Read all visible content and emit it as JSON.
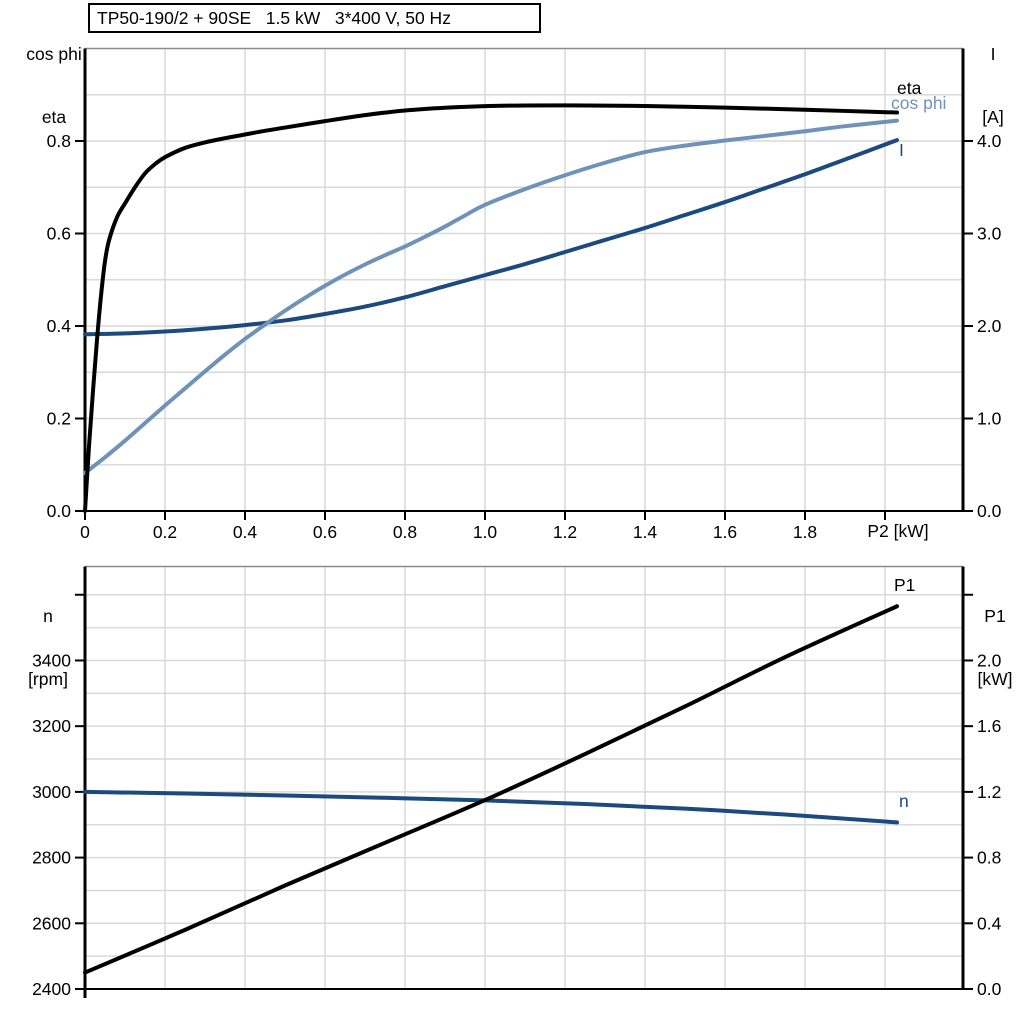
{
  "colors": {
    "grid": "#d9d9d9",
    "plot_border": "#8c8c8c",
    "axis": "#000000",
    "black_curve": "#000000",
    "dark_blue_curve": "#1a4a7e",
    "light_blue_curve": "#6f92b9"
  },
  "chart_data": [
    {
      "type": "line",
      "title": "TP50-190/2 + 90SE   1.5 kW   3*400 V, 50 Hz",
      "legend_position": "curve-end-labels",
      "grid": true,
      "x_axis": {
        "label": "P2 [kW]",
        "min": 0,
        "max": 2.195,
        "grid_step": 0.2,
        "ticks": [
          0,
          0.2,
          0.4,
          0.6,
          0.8,
          1.0,
          1.2,
          1.4,
          1.6,
          1.8,
          2.0
        ],
        "tick_labels": [
          "0",
          "0.2",
          "0.4",
          "0.6",
          "0.8",
          "1.0",
          "1.2",
          "1.4",
          "1.6",
          "1.8",
          ""
        ]
      },
      "y_left": {
        "label_lines": [
          "cos phi",
          "eta"
        ],
        "min": 0,
        "max": 1.0,
        "grid_step": 0.1,
        "ticks": [
          0.0,
          0.2,
          0.4,
          0.6,
          0.8
        ],
        "tick_labels": [
          "0.0",
          "0.2",
          "0.4",
          "0.6",
          "0.8"
        ]
      },
      "y_right": {
        "label_lines": [
          "I",
          "[A]"
        ],
        "min": 0,
        "max": 5.0,
        "ticks": [
          0.0,
          1.0,
          2.0,
          3.0,
          4.0
        ],
        "tick_labels": [
          "0.0",
          "1.0",
          "2.0",
          "3.0",
          "4.0"
        ]
      },
      "series": [
        {
          "name": "eta",
          "axis": "left",
          "color": "#000000",
          "points": [
            [
              0,
              0
            ],
            [
              0.01,
              0.14
            ],
            [
              0.02,
              0.26
            ],
            [
              0.03,
              0.37
            ],
            [
              0.04,
              0.465
            ],
            [
              0.05,
              0.54
            ],
            [
              0.06,
              0.585
            ],
            [
              0.08,
              0.635
            ],
            [
              0.1,
              0.665
            ],
            [
              0.125,
              0.7
            ],
            [
              0.15,
              0.73
            ],
            [
              0.175,
              0.75
            ],
            [
              0.2,
              0.765
            ],
            [
              0.25,
              0.785
            ],
            [
              0.3,
              0.797
            ],
            [
              0.35,
              0.806
            ],
            [
              0.4,
              0.814
            ],
            [
              0.45,
              0.822
            ],
            [
              0.5,
              0.829
            ],
            [
              0.6,
              0.843
            ],
            [
              0.7,
              0.856
            ],
            [
              0.8,
              0.866
            ],
            [
              0.9,
              0.872
            ],
            [
              1.0,
              0.8755
            ],
            [
              1.1,
              0.8768
            ],
            [
              1.2,
              0.877
            ],
            [
              1.3,
              0.8766
            ],
            [
              1.4,
              0.8756
            ],
            [
              1.5,
              0.874
            ],
            [
              1.6,
              0.8722
            ],
            [
              1.7,
              0.87
            ],
            [
              1.8,
              0.8676
            ],
            [
              1.9,
              0.865
            ],
            [
              2.03,
              0.8615
            ]
          ]
        },
        {
          "name": "cos phi",
          "axis": "left",
          "color": "#6f92b9",
          "points": [
            [
              0,
              0.082
            ],
            [
              0.05,
              0.116
            ],
            [
              0.1,
              0.152
            ],
            [
              0.15,
              0.19
            ],
            [
              0.2,
              0.228
            ],
            [
              0.25,
              0.265
            ],
            [
              0.3,
              0.302
            ],
            [
              0.35,
              0.338
            ],
            [
              0.4,
              0.372
            ],
            [
              0.45,
              0.403
            ],
            [
              0.5,
              0.433
            ],
            [
              0.55,
              0.461
            ],
            [
              0.6,
              0.487
            ],
            [
              0.65,
              0.511
            ],
            [
              0.7,
              0.533
            ],
            [
              0.75,
              0.553
            ],
            [
              0.8,
              0.572
            ],
            [
              0.85,
              0.593
            ],
            [
              0.9,
              0.615
            ],
            [
              0.95,
              0.639
            ],
            [
              1.0,
              0.662
            ],
            [
              1.1,
              0.696
            ],
            [
              1.2,
              0.726
            ],
            [
              1.3,
              0.753
            ],
            [
              1.4,
              0.776
            ],
            [
              1.5,
              0.79
            ],
            [
              1.6,
              0.801
            ],
            [
              1.7,
              0.811
            ],
            [
              1.8,
              0.821
            ],
            [
              1.9,
              0.832
            ],
            [
              2.03,
              0.844
            ]
          ]
        },
        {
          "name": "I",
          "axis": "right",
          "color": "#1a4a7e",
          "points": [
            [
              0,
              1.91
            ],
            [
              0.1,
              1.92
            ],
            [
              0.2,
              1.94
            ],
            [
              0.3,
              1.97
            ],
            [
              0.4,
              2.01
            ],
            [
              0.5,
              2.06
            ],
            [
              0.6,
              2.13
            ],
            [
              0.7,
              2.21
            ],
            [
              0.8,
              2.31
            ],
            [
              0.9,
              2.43
            ],
            [
              1.0,
              2.55
            ],
            [
              1.1,
              2.67
            ],
            [
              1.2,
              2.8
            ],
            [
              1.3,
              2.93
            ],
            [
              1.4,
              3.06
            ],
            [
              1.5,
              3.2
            ],
            [
              1.6,
              3.34
            ],
            [
              1.7,
              3.49
            ],
            [
              1.8,
              3.64
            ],
            [
              1.9,
              3.8
            ],
            [
              2.03,
              4.01
            ]
          ]
        }
      ]
    },
    {
      "type": "line",
      "title": "",
      "grid": true,
      "x_axis": {
        "label": "",
        "min": 0,
        "max": 2.195,
        "grid_step": 0.2,
        "ticks": [
          0
        ],
        "tick_labels": [
          ""
        ]
      },
      "y_left": {
        "label_lines": [
          "n",
          "[rpm]"
        ],
        "min": 2400,
        "max": 3686,
        "grid_step": 100,
        "ticks": [
          2400,
          2600,
          2800,
          3000,
          3200,
          3400,
          3600
        ],
        "tick_labels": [
          "2400",
          "2600",
          "2800",
          "3000",
          "3200",
          "3400",
          ""
        ]
      },
      "y_right": {
        "label_lines": [
          "P1",
          "[kW]"
        ],
        "min": 0,
        "max": 2.572,
        "ticks": [
          0.0,
          0.4,
          0.8,
          1.2,
          1.6,
          2.0,
          2.4
        ],
        "tick_labels": [
          "0.0",
          "0.4",
          "0.8",
          "1.2",
          "1.6",
          "2.0",
          ""
        ]
      },
      "series": [
        {
          "name": "P1",
          "axis": "right",
          "color": "#000000",
          "points": [
            [
              0,
              0.1
            ],
            [
              0.25,
              0.36
            ],
            [
              0.5,
              0.63
            ],
            [
              0.75,
              0.89
            ],
            [
              1.0,
              1.15
            ],
            [
              1.25,
              1.43
            ],
            [
              1.5,
              1.72
            ],
            [
              1.75,
              2.02
            ],
            [
              2.03,
              2.33
            ]
          ]
        },
        {
          "name": "n",
          "axis": "left",
          "color": "#1a4a7e",
          "points": [
            [
              0,
              3000
            ],
            [
              0.25,
              2995
            ],
            [
              0.5,
              2989
            ],
            [
              0.75,
              2982
            ],
            [
              1.0,
              2974
            ],
            [
              1.25,
              2963
            ],
            [
              1.5,
              2949
            ],
            [
              1.75,
              2931
            ],
            [
              2.03,
              2907
            ]
          ]
        }
      ]
    }
  ]
}
